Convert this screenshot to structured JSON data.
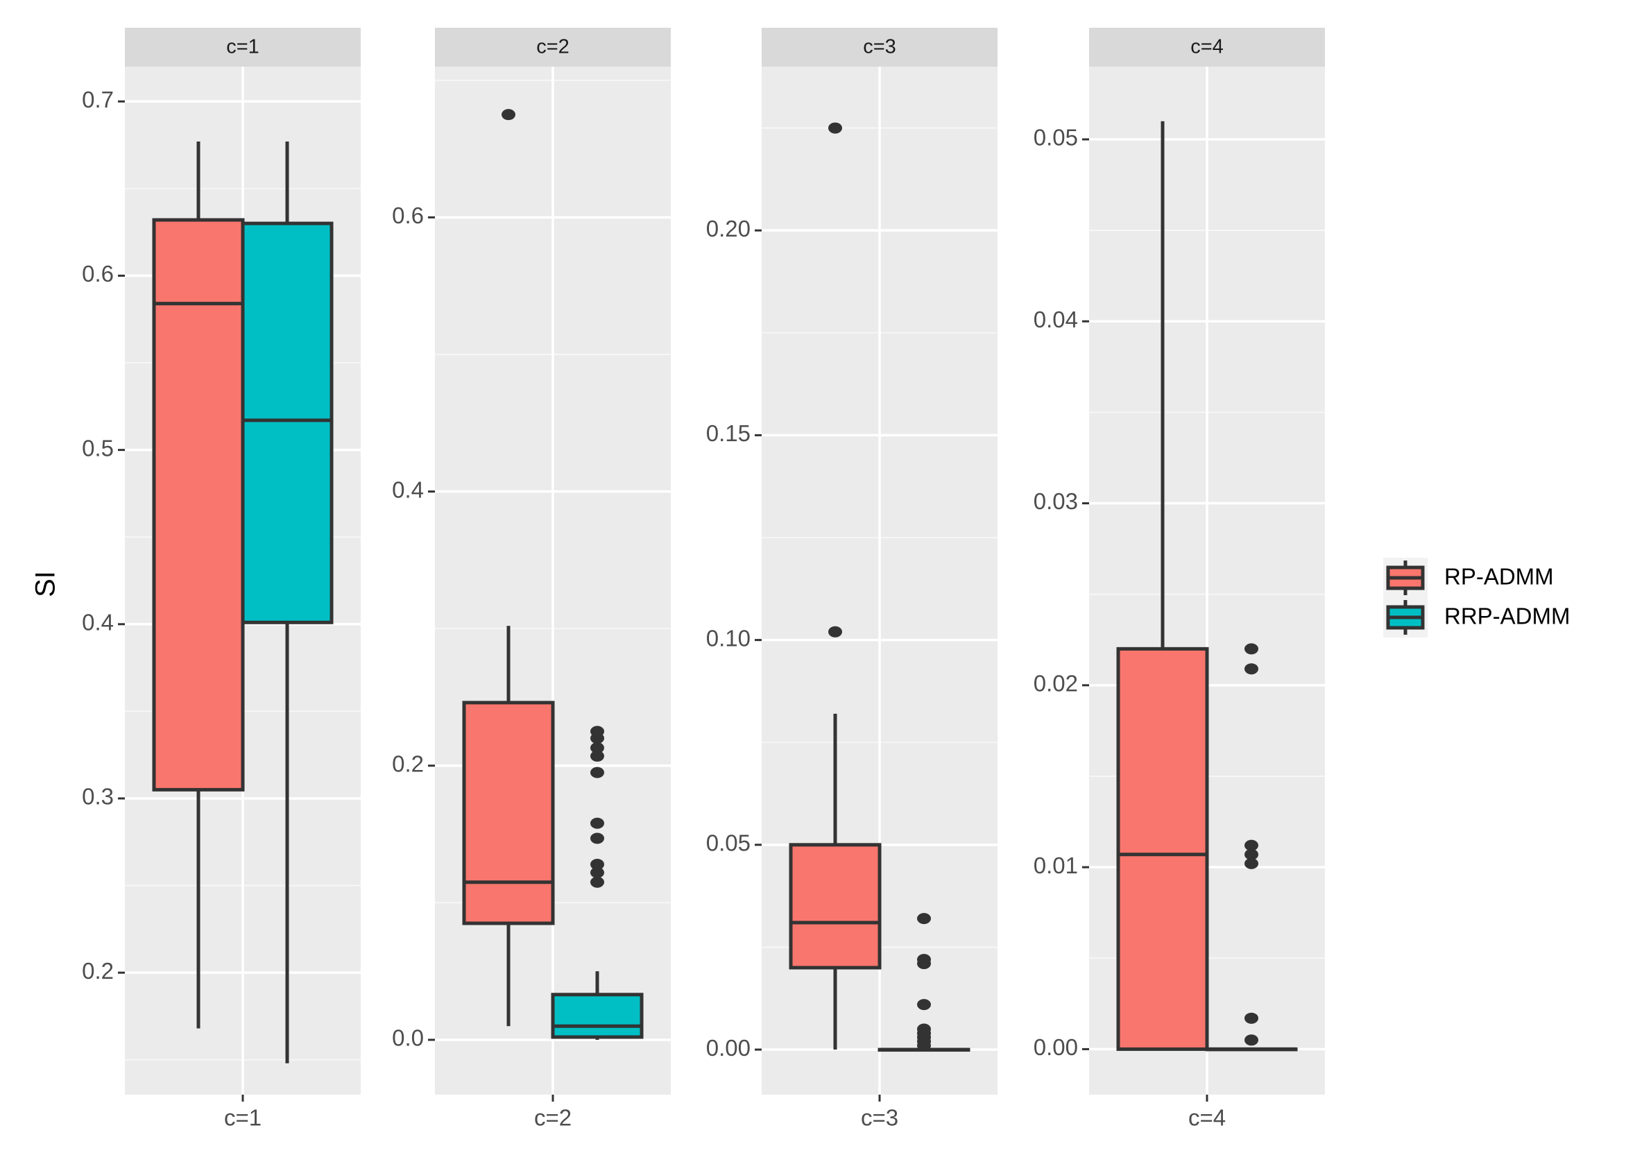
{
  "chart_data": {
    "type": "boxplot",
    "ylabel": "SI",
    "series": [
      {
        "name": "RP-ADMM",
        "color": "#f8766d"
      },
      {
        "name": "RRP-ADMM",
        "color": "#00bfc4"
      }
    ],
    "panels": [
      {
        "strip": "c=1",
        "xtick": "c=1",
        "ylim": [
          0.13,
          0.72
        ],
        "yticks": [
          0.2,
          0.3,
          0.4,
          0.5,
          0.6,
          0.7
        ],
        "yticklabels": [
          "0.2",
          "0.3",
          "0.4",
          "0.5",
          "0.6",
          "0.7"
        ],
        "boxes": [
          {
            "series": "RP-ADMM",
            "min": 0.168,
            "q1": 0.305,
            "median": 0.584,
            "q3": 0.632,
            "max": 0.677,
            "outliers": []
          },
          {
            "series": "RRP-ADMM",
            "min": 0.148,
            "q1": 0.401,
            "median": 0.517,
            "q3": 0.63,
            "max": 0.677,
            "outliers": []
          }
        ]
      },
      {
        "strip": "c=2",
        "xtick": "c=2",
        "ylim": [
          -0.04,
          0.71
        ],
        "yticks": [
          0.0,
          0.2,
          0.4,
          0.6
        ],
        "yticklabels": [
          "0.0",
          "0.2",
          "0.4",
          "0.6"
        ],
        "boxes": [
          {
            "series": "RP-ADMM",
            "min": 0.01,
            "q1": 0.085,
            "median": 0.115,
            "q3": 0.246,
            "max": 0.302,
            "outliers": [
              0.675
            ]
          },
          {
            "series": "RRP-ADMM",
            "min": 0.0,
            "q1": 0.002,
            "median": 0.01,
            "q3": 0.033,
            "max": 0.05,
            "outliers": [
              0.225,
              0.22,
              0.213,
              0.207,
              0.195,
              0.158,
              0.147,
              0.128,
              0.122,
              0.115
            ]
          }
        ]
      },
      {
        "strip": "c=3",
        "xtick": "c=3",
        "ylim": [
          -0.011,
          0.24
        ],
        "yticks": [
          0.0,
          0.05,
          0.1,
          0.15,
          0.2
        ],
        "yticklabels": [
          "0.00",
          "0.05",
          "0.10",
          "0.15",
          "0.20"
        ],
        "boxes": [
          {
            "series": "RP-ADMM",
            "min": 0.0,
            "q1": 0.02,
            "median": 0.031,
            "q3": 0.05,
            "max": 0.082,
            "outliers": [
              0.225,
              0.102
            ]
          },
          {
            "series": "RRP-ADMM",
            "min": 0.0,
            "q1": 0.0,
            "median": 0.0,
            "q3": 0.0,
            "max": 0.0005,
            "outliers": [
              0.032,
              0.022,
              0.021,
              0.011,
              0.005,
              0.004,
              0.003,
              0.002,
              0.001
            ]
          }
        ]
      },
      {
        "strip": "c=4",
        "xtick": "c=4",
        "ylim": [
          -0.0025,
          0.054
        ],
        "yticks": [
          0.0,
          0.01,
          0.02,
          0.03,
          0.04,
          0.05
        ],
        "yticklabels": [
          "0.00",
          "0.01",
          "0.02",
          "0.03",
          "0.04",
          "0.05"
        ],
        "boxes": [
          {
            "series": "RP-ADMM",
            "min": 0.0,
            "q1": 0.0,
            "median": 0.0107,
            "q3": 0.022,
            "max": 0.051,
            "outliers": []
          },
          {
            "series": "RRP-ADMM",
            "min": 0.0,
            "q1": 0.0,
            "median": 0.0,
            "q3": 0.0,
            "max": 0.0,
            "outliers": [
              0.022,
              0.0209,
              0.0112,
              0.0107,
              0.0102,
              0.0017,
              0.0005
            ]
          }
        ]
      }
    ]
  }
}
